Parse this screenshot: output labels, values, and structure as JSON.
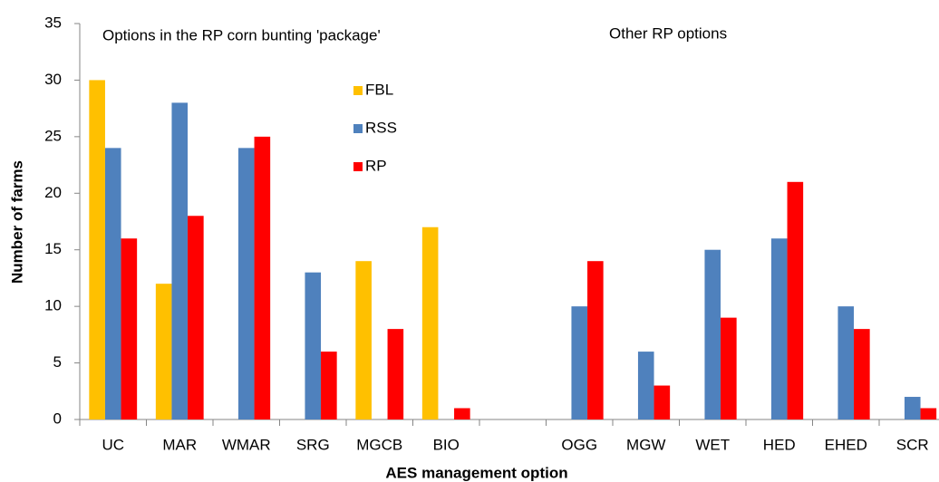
{
  "chart_data": {
    "type": "bar",
    "xlabel": "AES management option",
    "ylabel": "Number of farms",
    "annotations": [
      "Options in the RP corn bunting 'package'",
      "Other RP options"
    ],
    "categories": [
      "UC",
      "MAR",
      "WMAR",
      "SRG",
      "MGCB",
      "BIO",
      null,
      "OGG",
      "MGW",
      "WET",
      "HED",
      "EHED",
      "SCR"
    ],
    "series": [
      {
        "name": "FBL",
        "color": "#ffc000",
        "values": [
          30,
          12,
          0,
          0,
          14,
          17,
          null,
          0,
          0,
          0,
          0,
          0,
          0
        ]
      },
      {
        "name": "RSS",
        "color": "#4f81bd",
        "values": [
          24,
          28,
          24,
          13,
          0,
          0,
          null,
          10,
          6,
          15,
          16,
          10,
          2
        ]
      },
      {
        "name": "RP",
        "color": "#ff0000",
        "values": [
          16,
          18,
          25,
          6,
          8,
          1,
          null,
          14,
          3,
          9,
          21,
          8,
          1
        ]
      }
    ],
    "ylim": [
      0,
      35
    ],
    "yticks": [
      0,
      5,
      10,
      15,
      20,
      25,
      30,
      35
    ]
  }
}
